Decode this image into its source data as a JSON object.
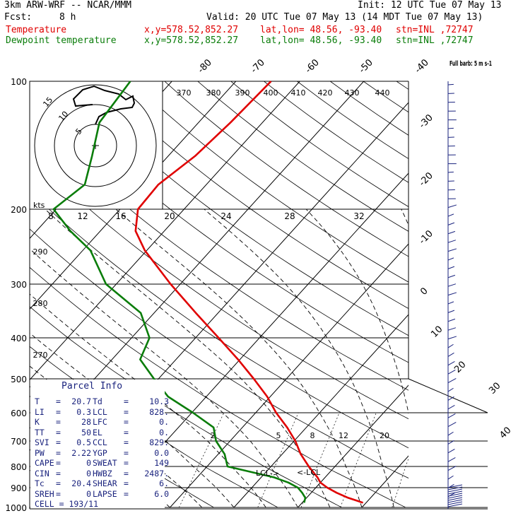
{
  "header": {
    "model": "3km ARW-WRF -- NCAR/MMM",
    "init": "Init: 12 UTC Tue 07 May 13",
    "fcst_label": "Fcst:",
    "fcst_value": "8 h",
    "valid": "Valid: 20 UTC Tue 07 May 13 (14 MDT Tue 07 May 13)",
    "temp_label": "Temperature",
    "dewp_label": "Dewpoint temperature",
    "xy": "x,y=578.52,852.27",
    "latlon": "lat,lon= 48.56, -93.40",
    "stn": "stn=INL ,72747"
  },
  "colors": {
    "temperature": "#e00000",
    "dewpoint": "#0a7d0a",
    "parcel_text": "#1a237e",
    "wind_barbs": "#1a237e",
    "grid": "#000000"
  },
  "chart_data": {
    "type": "line",
    "title": "",
    "p_levels": [
      1000,
      900,
      800,
      700,
      600,
      500,
      400,
      300,
      200,
      100
    ],
    "pressure_range": [
      1000,
      100
    ],
    "isotherms_top": [
      -80,
      -70,
      -60,
      -50,
      -40
    ],
    "isotherms_right": [
      -30,
      -20,
      -10,
      0,
      10,
      20,
      30,
      40
    ],
    "theta_labels": [
      370,
      380,
      390,
      400,
      410,
      420,
      430,
      440
    ],
    "theta_left": [
      290,
      280,
      270
    ],
    "mixing_ratio_labels": [
      "2",
      "5",
      "8",
      "12",
      "20"
    ],
    "hodograph": {
      "units": "kts",
      "rings": [
        "5",
        "10",
        "15"
      ],
      "speed_axis_labels": [
        "8",
        "12",
        "16",
        "20",
        "24",
        "28",
        "32"
      ]
    },
    "wind_barb_label": "Full barb: 5 m s-1",
    "series": [
      {
        "name": "Temperature",
        "p": [
          975,
          950,
          925,
          900,
          875,
          850,
          800,
          750,
          700,
          650,
          600,
          550,
          500,
          450,
          400,
          350,
          300,
          250,
          225,
          200,
          175,
          150,
          125,
          100
        ],
        "t": [
          19.5,
          16.5,
          14.0,
          11.8,
          10.0,
          8.8,
          5.9,
          2.9,
          0.2,
          -3.0,
          -6.8,
          -10.5,
          -15.1,
          -20.3,
          -26.4,
          -33.5,
          -41.5,
          -50.3,
          -54.5,
          -57.2,
          -57.5,
          -55.8,
          -55.0,
          -54.5
        ]
      },
      {
        "name": "Dewpoint temperature",
        "p": [
          975,
          950,
          925,
          900,
          875,
          850,
          800,
          750,
          700,
          650,
          600,
          550,
          500,
          450,
          400,
          350,
          300,
          250,
          225,
          200,
          175,
          150,
          125,
          100
        ],
        "t": [
          10.3,
          9.8,
          8.6,
          7.2,
          5.0,
          2.0,
          -6.8,
          -9.0,
          -12.2,
          -14.5,
          -19.8,
          -26.0,
          -30.7,
          -35.6,
          -37.2,
          -42.1,
          -51.6,
          -58.8,
          -64.7,
          -70.4,
          -69.0,
          -71.9,
          -75.5,
          -76.5
        ]
      }
    ],
    "lcl_labels": [
      "LCL->",
      "<-LCL"
    ]
  },
  "parcel_info": {
    "title": "Parcel Info",
    "rows": [
      [
        "T",
        "20.7",
        "Td",
        "10.3"
      ],
      [
        "LI",
        "0.3",
        "LCL",
        "828."
      ],
      [
        "K",
        "28",
        "LFC",
        "0."
      ],
      [
        "TT",
        "50",
        "EL",
        "0."
      ],
      [
        "SVI",
        "0.5",
        "CCL",
        "829."
      ],
      [
        "PW",
        "2.22",
        "YGP",
        "0.0"
      ],
      [
        "CAPE",
        "0",
        "SWEAT",
        "149"
      ],
      [
        "CIN",
        "0",
        "HWBZ",
        "2487."
      ],
      [
        "Tc",
        "20.4",
        "SHEAR",
        "6."
      ],
      [
        "SREH",
        "0",
        "LAPSE",
        "6.0"
      ]
    ],
    "cell": "CELL = 193/11"
  }
}
